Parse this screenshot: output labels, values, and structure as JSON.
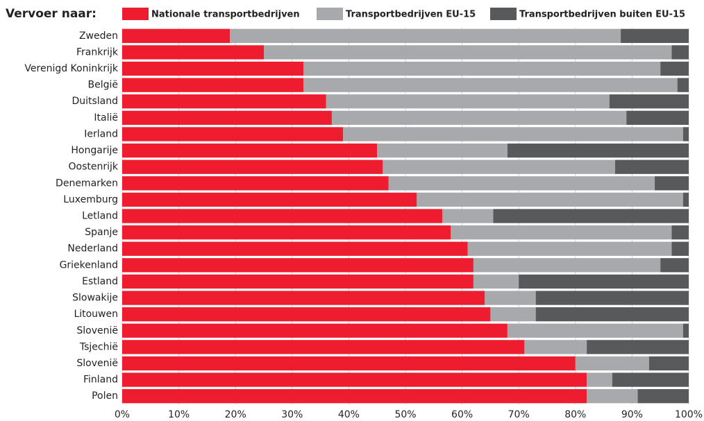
{
  "chart_data": {
    "type": "stacked_barh",
    "legend_title": "Vervoer naar:",
    "categories": [
      "Zweden",
      "Frankrijk",
      "Verenigd Koninkrijk",
      "België",
      "Duitsland",
      "Italië",
      "Ierland",
      "Hongarije",
      "Oostenrijk",
      "Denemarken",
      "Luxemburg",
      "Letland",
      "Spanje",
      "Nederland",
      "Griekenland",
      "Estland",
      "Slowakije",
      "Litouwen",
      "Slovenië",
      "Tsjechië",
      "Slovenië",
      "Finland",
      "Polen"
    ],
    "series": [
      {
        "name": "Nationale transportbedrijven",
        "color": "#ed1c2e",
        "values": [
          19,
          25,
          32,
          32,
          36,
          37,
          39,
          45,
          46,
          47,
          52,
          56.5,
          58,
          61,
          62,
          62,
          64,
          65,
          68,
          71,
          80,
          82,
          82
        ]
      },
      {
        "name": "Transportbedrijven EU-15",
        "color": "#a7a9ac",
        "values": [
          69,
          72,
          63,
          66,
          50,
          52,
          60,
          23,
          41,
          47,
          47,
          9,
          39,
          36,
          33,
          8,
          9,
          8,
          31,
          11,
          13,
          4.5,
          9
        ]
      },
      {
        "name": "Transportbedrijven buiten EU-15",
        "color": "#58595b",
        "values": [
          12,
          3,
          5,
          2,
          14,
          11,
          1,
          32,
          13,
          6,
          1,
          34.5,
          3,
          3,
          5,
          30,
          27,
          27,
          1,
          18,
          7,
          13.5,
          9
        ]
      }
    ],
    "xlim": [
      0,
      100
    ],
    "xticks": [
      {
        "value": 0,
        "label": "0%"
      },
      {
        "value": 10,
        "label": "10%"
      },
      {
        "value": 20,
        "label": "20%"
      },
      {
        "value": 30,
        "label": "30%"
      },
      {
        "value": 40,
        "label": "40%"
      },
      {
        "value": 50,
        "label": "50%"
      },
      {
        "value": 60,
        "label": "60%"
      },
      {
        "value": 70,
        "label": "70%"
      },
      {
        "value": 80,
        "label": "80%"
      },
      {
        "value": 90,
        "label": "90%"
      },
      {
        "value": 100,
        "label": "100%"
      }
    ],
    "grid": true
  }
}
